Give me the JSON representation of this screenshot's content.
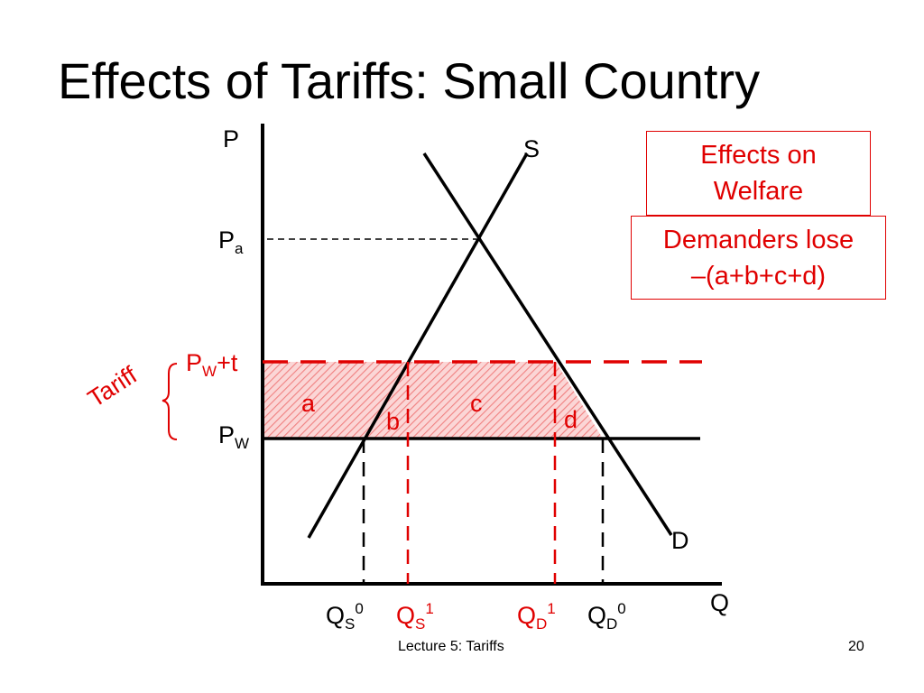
{
  "slide": {
    "title": "Effects of Tariffs:  Small Country",
    "footer": "Lecture 5: Tariffs",
    "page_number": "20"
  },
  "diagram": {
    "axis_y_label": "P",
    "axis_x_label": "Q",
    "supply_label": "S",
    "demand_label": "D",
    "price_autarky": {
      "base": "P",
      "sub": "a"
    },
    "price_world_tariff": {
      "base": "P",
      "sub": "W",
      "suffix": "+t"
    },
    "price_world": {
      "base": "P",
      "sub": "W"
    },
    "tariff_label": "Tariff",
    "areas": {
      "a": "a",
      "b": "b",
      "c": "c",
      "d": "d"
    },
    "q_labels": [
      {
        "base": "Q",
        "sub": "S",
        "sup": "0",
        "color": "black"
      },
      {
        "base": "Q",
        "sub": "S",
        "sup": "1",
        "color": "red"
      },
      {
        "base": "Q",
        "sub": "D",
        "sup": "1",
        "color": "red"
      },
      {
        "base": "Q",
        "sub": "D",
        "sup": "0",
        "color": "black"
      }
    ]
  },
  "boxes": {
    "welfare": {
      "line1": "Effects on",
      "line2": "Welfare"
    },
    "demanders": {
      "line1": "Demanders lose",
      "line2": "–(a+b+c+d)"
    }
  },
  "colors": {
    "accent": "#e00000",
    "hatch": "#f08080"
  }
}
